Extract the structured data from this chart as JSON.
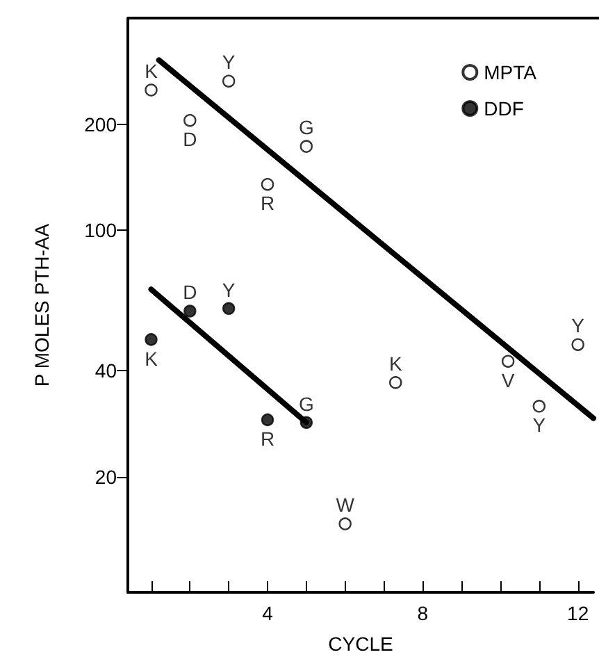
{
  "chart_data": {
    "type": "scatter",
    "xlabel": "CYCLE",
    "ylabel": "P MOLES PTH-AA",
    "log": "y",
    "xlim": [
      0.4,
      12.4
    ],
    "ylim": [
      9.4,
      400
    ],
    "xticks": [
      {
        "value": 1,
        "label": null
      },
      {
        "value": 2,
        "label": null
      },
      {
        "value": 3,
        "label": null
      },
      4,
      {
        "value": 5,
        "label": null
      },
      {
        "value": 6,
        "label": null
      },
      {
        "value": 7,
        "label": null
      },
      8,
      {
        "value": 9,
        "label": null
      },
      {
        "value": 10,
        "label": null
      },
      {
        "value": 11,
        "label": null
      },
      12
    ],
    "yticks": [
      20,
      40,
      100,
      200
    ],
    "grid": false,
    "legend": "top right",
    "marker": "circle",
    "series": [
      {
        "name": "MPTA",
        "color": "#ffffff",
        "x": [
          1,
          2,
          3,
          4,
          5,
          6,
          7.3,
          10.2,
          11,
          12
        ],
        "values": [
          250,
          205,
          265,
          135,
          173,
          14.7,
          37,
          42.5,
          31.7,
          47.4
        ],
        "value_labels": [
          "K",
          "D",
          "Y",
          "R",
          "G",
          "W",
          "K",
          "V",
          "Y",
          "Y"
        ]
      },
      {
        "name": "DDF",
        "color": "#000000",
        "x": [
          1,
          2,
          3,
          4,
          5
        ],
        "values": [
          49,
          59,
          60,
          29,
          28.5
        ],
        "value_labels": [
          "K",
          "D",
          "Y",
          "R",
          "G"
        ]
      },
      {
        "type": "line",
        "color": "#000000",
        "marker": "none",
        "line_style": "solid",
        "x": [
          1.2,
          12.4
        ],
        "values": [
          304,
          29.3
        ]
      },
      {
        "type": "line",
        "color": "#000000",
        "marker": "none",
        "line_style": "solid",
        "x": [
          1,
          5
        ],
        "values": [
          68,
          28.5
        ]
      }
    ]
  }
}
